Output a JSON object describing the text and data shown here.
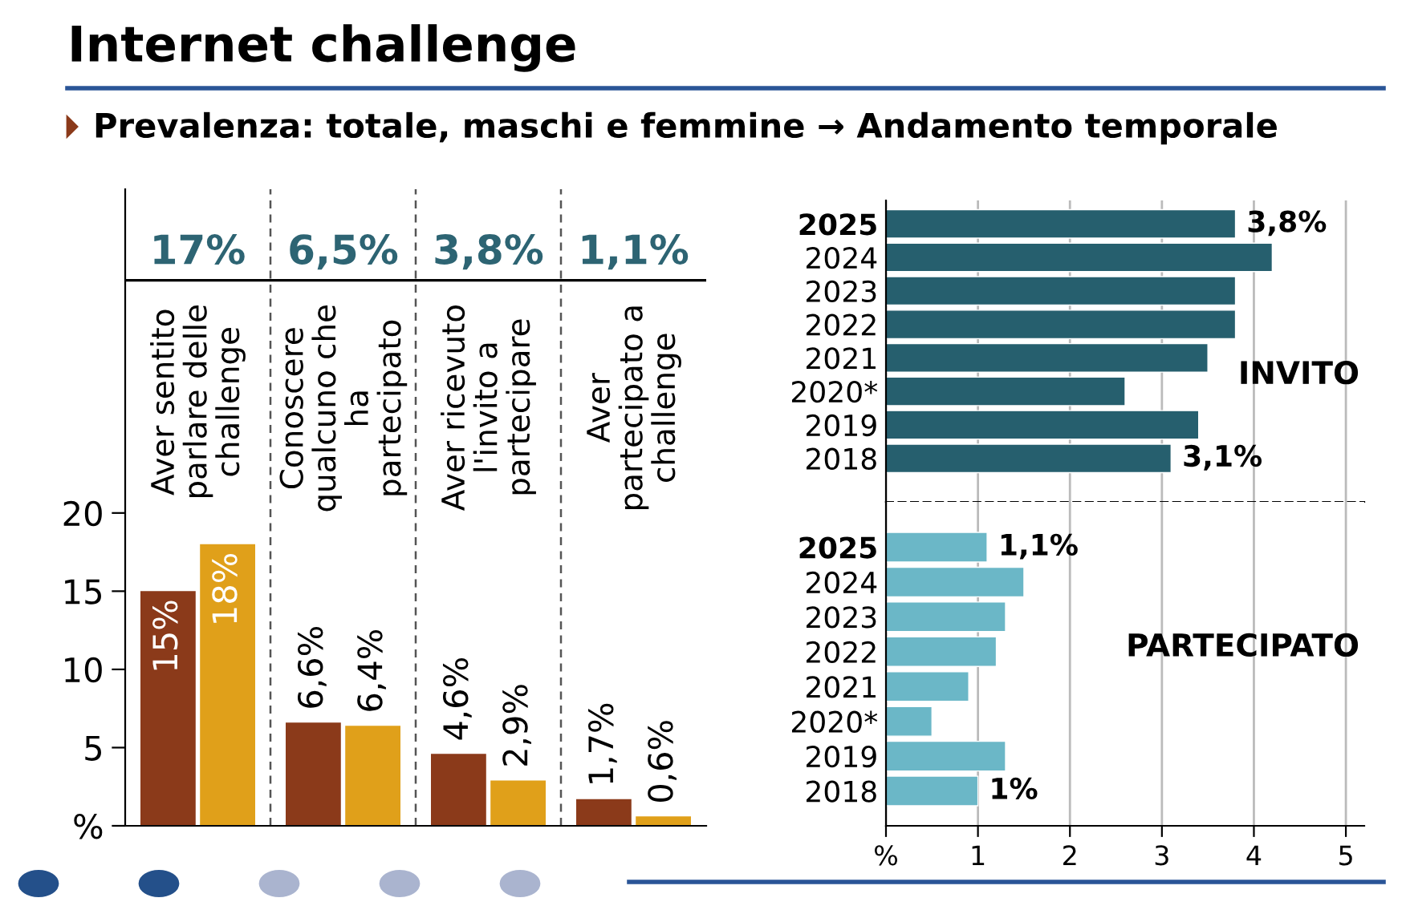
{
  "chart_data": [
    {
      "type": "bar",
      "title": "Internet challenge",
      "subtitle": "Prevalenza: totale, maschi e femmine → Andamento temporale",
      "categories": [
        "Aver sentito parlare delle challenge",
        "Conoscere qualcuno che ha partecipato",
        "Aver ricevuto l'invito a partecipare",
        "Aver partecipato a challenge"
      ],
      "series": [
        {
          "color": "#8b3a1a",
          "values": [
            15,
            6.6,
            4.6,
            1.7
          ],
          "value_labels": [
            "15%",
            "6,6%",
            "4,6%",
            "1,7%"
          ]
        },
        {
          "color": "#e0a01a",
          "values": [
            18,
            6.4,
            2.9,
            0.6
          ],
          "value_labels": [
            "18%",
            "6,4%",
            "2,9%",
            "0,6%"
          ]
        }
      ],
      "annotations": [
        "17%",
        "6,5%",
        "3,8%",
        "1,1%"
      ],
      "ylim": [
        0,
        40.7
      ],
      "yticks": [
        {
          "value": 0,
          "label": "%"
        },
        5,
        10,
        15,
        20
      ],
      "grid": false
    },
    {
      "type": "bar",
      "orientation": "horizontal",
      "title": "INVITO",
      "categories": [
        "2025",
        "2024",
        "2023",
        "2022",
        "2021",
        "2020*",
        "2019",
        "2018"
      ],
      "values": [
        3.8,
        4.2,
        3.8,
        3.8,
        3.5,
        2.6,
        3.4,
        3.1
      ],
      "color": "#265f6e",
      "value_labels": [
        "3,8%",
        null,
        null,
        null,
        null,
        null,
        null,
        "3,1%"
      ],
      "xlim": [
        0,
        5.2
      ],
      "xticks": [
        0,
        1,
        2,
        3,
        4,
        5
      ],
      "grid": "x",
      "tick_labels": "y"
    },
    {
      "type": "bar",
      "orientation": "horizontal",
      "title": "PARTECIPATO",
      "categories": [
        "2025",
        "2024",
        "2023",
        "2022",
        "2021",
        "2020*",
        "2019",
        "2018"
      ],
      "values": [
        1.1,
        1.5,
        1.3,
        1.2,
        0.9,
        0.5,
        1.3,
        1.0
      ],
      "color": "#6bb7c7",
      "value_labels": [
        "1,1%",
        null,
        null,
        null,
        null,
        null,
        null,
        "1%"
      ],
      "xlim": [
        0,
        5.2
      ],
      "xticks": [
        {
          "value": 0,
          "label": "%"
        },
        1,
        2,
        3,
        4,
        5
      ],
      "grid": "x"
    }
  ]
}
